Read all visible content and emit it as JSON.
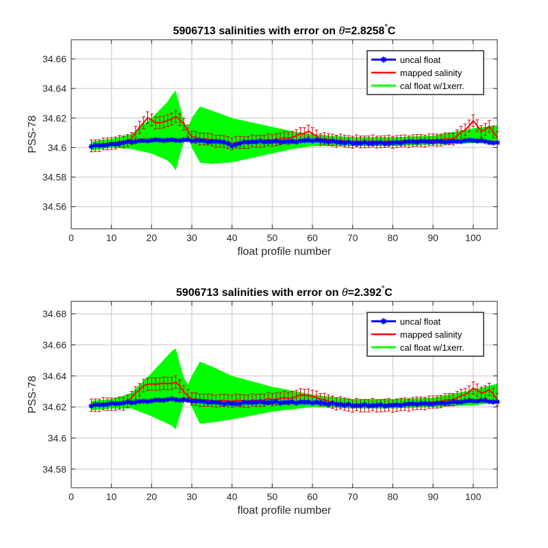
{
  "chart_data": [
    {
      "type": "line",
      "title_prefix": "5906713 salinities with error on ",
      "title_theta": "θ",
      "title_value": "=2.8258",
      "title_unit": "C",
      "xlabel": "float profile number",
      "ylabel": "PSS-78",
      "xlim": [
        0,
        106
      ],
      "ylim": [
        34.545,
        34.673
      ],
      "xticks": [
        0,
        10,
        20,
        30,
        40,
        50,
        60,
        70,
        80,
        90,
        100
      ],
      "yticks": [
        34.56,
        34.58,
        34.6,
        34.62,
        34.64,
        34.66
      ],
      "ytick_labels": [
        "34.56",
        "34.58",
        "34.6",
        "34.62",
        "34.64",
        "34.66"
      ],
      "grid": true,
      "legend_position": "top-right",
      "colors": {
        "uncal": "#0000ff",
        "mapped": "#ff0000",
        "cal": "#00ff00",
        "errorbar": "#cc0000"
      },
      "legend": [
        "uncal float",
        "mapped salinity",
        "cal float w/1xerr."
      ],
      "uncal_knots": [
        [
          5,
          34.601
        ],
        [
          10,
          34.602
        ],
        [
          15,
          34.604
        ],
        [
          20,
          34.605
        ],
        [
          25,
          34.605
        ],
        [
          30,
          34.605
        ],
        [
          35,
          34.604
        ],
        [
          38,
          34.604
        ],
        [
          40,
          34.601
        ],
        [
          42,
          34.603
        ],
        [
          45,
          34.604
        ],
        [
          50,
          34.604
        ],
        [
          55,
          34.604
        ],
        [
          60,
          34.605
        ],
        [
          65,
          34.604
        ],
        [
          70,
          34.603
        ],
        [
          75,
          34.603
        ],
        [
          80,
          34.603
        ],
        [
          85,
          34.604
        ],
        [
          90,
          34.604
        ],
        [
          95,
          34.604
        ],
        [
          100,
          34.605
        ],
        [
          103,
          34.604
        ],
        [
          106,
          34.603
        ]
      ],
      "mapped_knots": [
        [
          5,
          34.601
        ],
        [
          8,
          34.602
        ],
        [
          10,
          34.603
        ],
        [
          13,
          34.604
        ],
        [
          15,
          34.606
        ],
        [
          17,
          34.614
        ],
        [
          19,
          34.62
        ],
        [
          21,
          34.617
        ],
        [
          23,
          34.617
        ],
        [
          26,
          34.621
        ],
        [
          28,
          34.616
        ],
        [
          30,
          34.607
        ],
        [
          35,
          34.605
        ],
        [
          40,
          34.603
        ],
        [
          45,
          34.604
        ],
        [
          50,
          34.605
        ],
        [
          55,
          34.607
        ],
        [
          59,
          34.611
        ],
        [
          62,
          34.606
        ],
        [
          65,
          34.605
        ],
        [
          70,
          34.604
        ],
        [
          80,
          34.604
        ],
        [
          90,
          34.605
        ],
        [
          95,
          34.606
        ],
        [
          98,
          34.612
        ],
        [
          100,
          34.618
        ],
        [
          102,
          34.611
        ],
        [
          104,
          34.614
        ],
        [
          106,
          34.607
        ]
      ],
      "errorbar_halfwidth": 0.004,
      "cal_band_center_knots": [
        [
          5,
          34.601
        ],
        [
          10,
          34.603
        ],
        [
          15,
          34.604
        ],
        [
          20,
          34.608
        ],
        [
          25,
          34.612
        ],
        [
          30,
          34.61
        ],
        [
          35,
          34.607
        ],
        [
          40,
          34.605
        ],
        [
          50,
          34.605
        ],
        [
          60,
          34.605
        ],
        [
          70,
          34.604
        ],
        [
          80,
          34.604
        ],
        [
          90,
          34.605
        ],
        [
          100,
          34.608
        ],
        [
          106,
          34.61
        ]
      ],
      "cal_band_halfwidth_knots": [
        [
          5,
          0.003
        ],
        [
          10,
          0.003
        ],
        [
          15,
          0.005
        ],
        [
          20,
          0.012
        ],
        [
          24,
          0.02
        ],
        [
          26,
          0.027
        ],
        [
          28,
          0.007
        ],
        [
          29,
          0.003
        ],
        [
          30,
          0.01
        ],
        [
          32,
          0.019
        ],
        [
          35,
          0.018
        ],
        [
          40,
          0.015
        ],
        [
          45,
          0.012
        ],
        [
          50,
          0.009
        ],
        [
          55,
          0.006
        ],
        [
          60,
          0.004
        ],
        [
          70,
          0.003
        ],
        [
          80,
          0.003
        ],
        [
          90,
          0.003
        ],
        [
          95,
          0.004
        ],
        [
          100,
          0.005
        ],
        [
          106,
          0.005
        ]
      ]
    },
    {
      "type": "line",
      "title_prefix": "5906713 salinities with error on ",
      "title_theta": "θ",
      "title_value": "=2.392",
      "title_unit": "C",
      "xlabel": "float profile number",
      "ylabel": "PSS-78",
      "xlim": [
        0,
        106
      ],
      "ylim": [
        34.568,
        34.688
      ],
      "xticks": [
        0,
        10,
        20,
        30,
        40,
        50,
        60,
        70,
        80,
        90,
        100
      ],
      "yticks": [
        34.58,
        34.6,
        34.62,
        34.64,
        34.66,
        34.68
      ],
      "ytick_labels": [
        "34.58",
        "34.6",
        "34.62",
        "34.64",
        "34.66",
        "34.68"
      ],
      "grid": true,
      "legend_position": "top-right",
      "colors": {
        "uncal": "#0000ff",
        "mapped": "#ff0000",
        "cal": "#00ff00",
        "errorbar": "#cc0000"
      },
      "legend": [
        "uncal float",
        "mapped salinity",
        "cal float w/1xerr."
      ],
      "uncal_knots": [
        [
          5,
          34.621
        ],
        [
          10,
          34.622
        ],
        [
          15,
          34.623
        ],
        [
          20,
          34.624
        ],
        [
          25,
          34.625
        ],
        [
          30,
          34.624
        ],
        [
          35,
          34.623
        ],
        [
          40,
          34.622
        ],
        [
          45,
          34.623
        ],
        [
          50,
          34.623
        ],
        [
          55,
          34.623
        ],
        [
          60,
          34.623
        ],
        [
          65,
          34.622
        ],
        [
          70,
          34.621
        ],
        [
          75,
          34.621
        ],
        [
          80,
          34.621
        ],
        [
          85,
          34.622
        ],
        [
          90,
          34.622
        ],
        [
          95,
          34.623
        ],
        [
          100,
          34.624
        ],
        [
          103,
          34.624
        ],
        [
          106,
          34.623
        ]
      ],
      "mapped_knots": [
        [
          5,
          34.621
        ],
        [
          10,
          34.622
        ],
        [
          13,
          34.622
        ],
        [
          15,
          34.626
        ],
        [
          18,
          34.634
        ],
        [
          21,
          34.635
        ],
        [
          24,
          34.635
        ],
        [
          26,
          34.636
        ],
        [
          28,
          34.63
        ],
        [
          30,
          34.625
        ],
        [
          35,
          34.624
        ],
        [
          40,
          34.624
        ],
        [
          45,
          34.624
        ],
        [
          50,
          34.625
        ],
        [
          55,
          34.626
        ],
        [
          58,
          34.628
        ],
        [
          61,
          34.626
        ],
        [
          65,
          34.623
        ],
        [
          70,
          34.621
        ],
        [
          80,
          34.621
        ],
        [
          90,
          34.623
        ],
        [
          95,
          34.625
        ],
        [
          98,
          34.628
        ],
        [
          100,
          34.632
        ],
        [
          102,
          34.629
        ],
        [
          104,
          34.631
        ],
        [
          106,
          34.625
        ]
      ],
      "errorbar_halfwidth": 0.004,
      "cal_band_center_knots": [
        [
          5,
          34.621
        ],
        [
          10,
          34.622
        ],
        [
          15,
          34.624
        ],
        [
          20,
          34.628
        ],
        [
          25,
          34.632
        ],
        [
          30,
          34.63
        ],
        [
          35,
          34.628
        ],
        [
          40,
          34.626
        ],
        [
          50,
          34.625
        ],
        [
          60,
          34.624
        ],
        [
          70,
          34.622
        ],
        [
          80,
          34.622
        ],
        [
          90,
          34.623
        ],
        [
          100,
          34.626
        ],
        [
          106,
          34.629
        ]
      ],
      "cal_band_halfwidth_knots": [
        [
          5,
          0.003
        ],
        [
          10,
          0.003
        ],
        [
          15,
          0.005
        ],
        [
          20,
          0.014
        ],
        [
          24,
          0.022
        ],
        [
          26,
          0.026
        ],
        [
          28,
          0.008
        ],
        [
          29,
          0.004
        ],
        [
          30,
          0.01
        ],
        [
          32,
          0.02
        ],
        [
          35,
          0.018
        ],
        [
          40,
          0.014
        ],
        [
          45,
          0.011
        ],
        [
          50,
          0.008
        ],
        [
          55,
          0.006
        ],
        [
          60,
          0.004
        ],
        [
          70,
          0.003
        ],
        [
          80,
          0.003
        ],
        [
          90,
          0.003
        ],
        [
          95,
          0.004
        ],
        [
          100,
          0.005
        ],
        [
          106,
          0.006
        ]
      ]
    }
  ]
}
